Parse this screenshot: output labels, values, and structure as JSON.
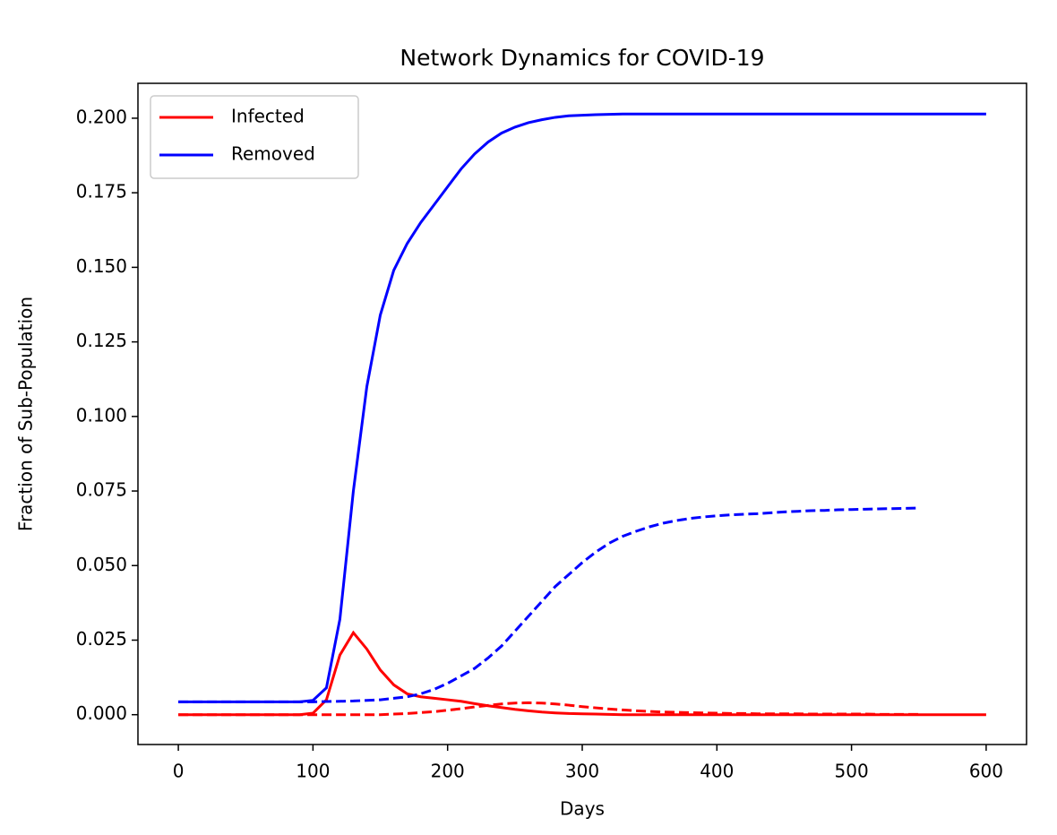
{
  "chart_data": {
    "type": "line",
    "title": "Network Dynamics for COVID-19",
    "xlabel": "Days",
    "ylabel": "Fraction of Sub-Population",
    "x": [
      0,
      10,
      20,
      30,
      40,
      50,
      60,
      70,
      80,
      90,
      100,
      110,
      120,
      130,
      140,
      150,
      160,
      170,
      180,
      190,
      200,
      210,
      220,
      230,
      240,
      250,
      260,
      270,
      280,
      290,
      300,
      310,
      320,
      330,
      340,
      350,
      360,
      370,
      380,
      390,
      400,
      410,
      420,
      430,
      440,
      450,
      460,
      470,
      480,
      490,
      500,
      510,
      520,
      530,
      540,
      550,
      560,
      570,
      580,
      590,
      600
    ],
    "series": [
      {
        "name": "Infected",
        "color": "#ff0000",
        "dashed": false,
        "values": [
          0,
          0,
          0,
          0,
          0,
          0,
          0,
          0,
          0,
          0,
          0.0005,
          0.005,
          0.02,
          0.0275,
          0.022,
          0.015,
          0.01,
          0.007,
          0.006,
          0.0055,
          0.005,
          0.0045,
          0.0037,
          0.003,
          0.0024,
          0.0018,
          0.0013,
          0.0009,
          0.0006,
          0.0004,
          0.0003,
          0.0002,
          0.0001,
          0,
          0,
          0,
          0,
          0,
          0,
          0,
          0,
          0,
          0,
          0,
          0,
          0,
          0,
          0,
          0,
          0,
          0,
          0,
          0,
          0,
          0,
          0,
          0,
          0,
          0,
          0,
          0
        ]
      },
      {
        "name": "Removed",
        "color": "#0000ff",
        "dashed": false,
        "values": [
          0.0043,
          0.0043,
          0.0043,
          0.0043,
          0.0043,
          0.0043,
          0.0043,
          0.0043,
          0.0043,
          0.0043,
          0.0048,
          0.009,
          0.032,
          0.075,
          0.11,
          0.134,
          0.149,
          0.158,
          0.165,
          0.171,
          0.177,
          0.183,
          0.188,
          0.192,
          0.195,
          0.197,
          0.1985,
          0.1995,
          0.2003,
          0.2008,
          0.201,
          0.2012,
          0.2013,
          0.2014,
          0.2014,
          0.2014,
          0.2014,
          0.2014,
          0.2014,
          0.2014,
          0.2014,
          0.2014,
          0.2014,
          0.2014,
          0.2014,
          0.2014,
          0.2014,
          0.2014,
          0.2014,
          0.2014,
          0.2014,
          0.2014,
          0.2014,
          0.2014,
          0.2014,
          0.2014,
          0.2014,
          0.2014,
          0.2014,
          0.2014,
          0.2014
        ]
      },
      {
        "color": "#ff0000",
        "dashed": true,
        "values": [
          0,
          0,
          0,
          0,
          0,
          0,
          0,
          0,
          0,
          0,
          0,
          0,
          0,
          0,
          0,
          0,
          0.0002,
          0.0004,
          0.0007,
          0.001,
          0.0015,
          0.002,
          0.0026,
          0.0031,
          0.0036,
          0.0039,
          0.004,
          0.0039,
          0.0036,
          0.0032,
          0.0027,
          0.0023,
          0.0019,
          0.0016,
          0.0013,
          0.0011,
          0.0009,
          0.0008,
          0.0007,
          0.0006,
          0.0005,
          0.0004,
          0.0004,
          0.0003,
          0.0003,
          0.0003,
          0.0003,
          0.0002,
          0.0002,
          0.0002,
          0.0002,
          0.0002,
          0.0001,
          0.0001,
          0.0001,
          0.0001,
          null,
          null,
          null,
          null,
          null
        ]
      },
      {
        "color": "#0000ff",
        "dashed": true,
        "values": [
          0.0043,
          0.0043,
          0.0043,
          0.0043,
          0.0043,
          0.0043,
          0.0043,
          0.0043,
          0.0043,
          0.0043,
          0.0043,
          0.0044,
          0.0045,
          0.0046,
          0.0048,
          0.005,
          0.0055,
          0.006,
          0.007,
          0.0085,
          0.0105,
          0.013,
          0.0155,
          0.019,
          0.023,
          0.028,
          0.033,
          0.038,
          0.043,
          0.047,
          0.051,
          0.0545,
          0.0575,
          0.0598,
          0.0615,
          0.063,
          0.0642,
          0.0651,
          0.0658,
          0.0663,
          0.0667,
          0.067,
          0.0672,
          0.0674,
          0.0677,
          0.068,
          0.0682,
          0.0684,
          0.0685,
          0.0687,
          0.0688,
          0.0689,
          0.069,
          0.0691,
          0.0692,
          0.0693,
          null,
          null,
          null,
          null,
          null
        ]
      }
    ],
    "xlim": [
      -30,
      630
    ],
    "ylim": [
      -0.01,
      0.2117
    ],
    "xticks": [
      0,
      100,
      200,
      300,
      400,
      500,
      600
    ],
    "yticks": [
      {
        "value": 0,
        "label": "0.000"
      },
      {
        "value": 0.025,
        "label": "0.025"
      },
      {
        "value": 0.05,
        "label": "0.050"
      },
      {
        "value": 0.075,
        "label": "0.075"
      },
      {
        "value": 0.1,
        "label": "0.100"
      },
      {
        "value": 0.125,
        "label": "0.125"
      },
      {
        "value": 0.15,
        "label": "0.150"
      },
      {
        "value": 0.175,
        "label": "0.175"
      },
      {
        "value": 0.2,
        "label": "0.200"
      }
    ],
    "grid": false,
    "legend": "upper left"
  }
}
